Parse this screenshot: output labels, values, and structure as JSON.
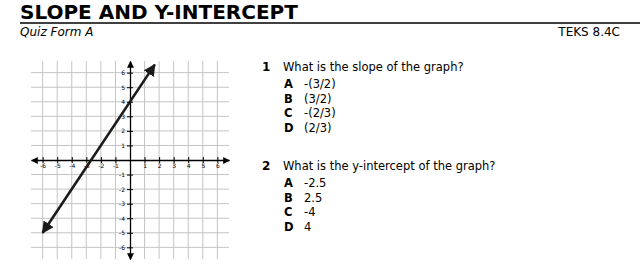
{
  "header": {
    "title": "SLOPE AND Y-INTERCEPT",
    "subtitle": "Quiz Form A",
    "code": "TEKS 8.4C"
  },
  "chart_data": {
    "type": "line",
    "x": [
      -6,
      1.7
    ],
    "values": [
      -5,
      6.55
    ],
    "color": "#1a1a1a",
    "marker": "arrow",
    "xlim": [
      -6.8,
      6.8
    ],
    "ylim": [
      -6.8,
      6.8
    ],
    "xticks": [
      -6,
      -5,
      -4,
      -3,
      -2,
      -1,
      1,
      2,
      3,
      4,
      5,
      6
    ],
    "yticks": [
      -6,
      -5,
      -4,
      -3,
      -2,
      -1,
      1,
      2,
      3,
      4,
      5,
      6
    ],
    "grid": true
  },
  "questions": [
    {
      "number": "1",
      "text": "What is the slope of the graph?",
      "options": [
        {
          "letter": "A",
          "text": "-(3/2)"
        },
        {
          "letter": "B",
          "text": "(3/2)"
        },
        {
          "letter": "C",
          "text": "-(2/3)"
        },
        {
          "letter": "D",
          "text": "(2/3)"
        }
      ]
    },
    {
      "number": "2",
      "text": "What is the y-intercept of the graph?",
      "options": [
        {
          "letter": "A",
          "text": "-2.5"
        },
        {
          "letter": "B",
          "text": "2.5"
        },
        {
          "letter": "C",
          "text": "-4"
        },
        {
          "letter": "D",
          "text": "4"
        }
      ]
    }
  ]
}
